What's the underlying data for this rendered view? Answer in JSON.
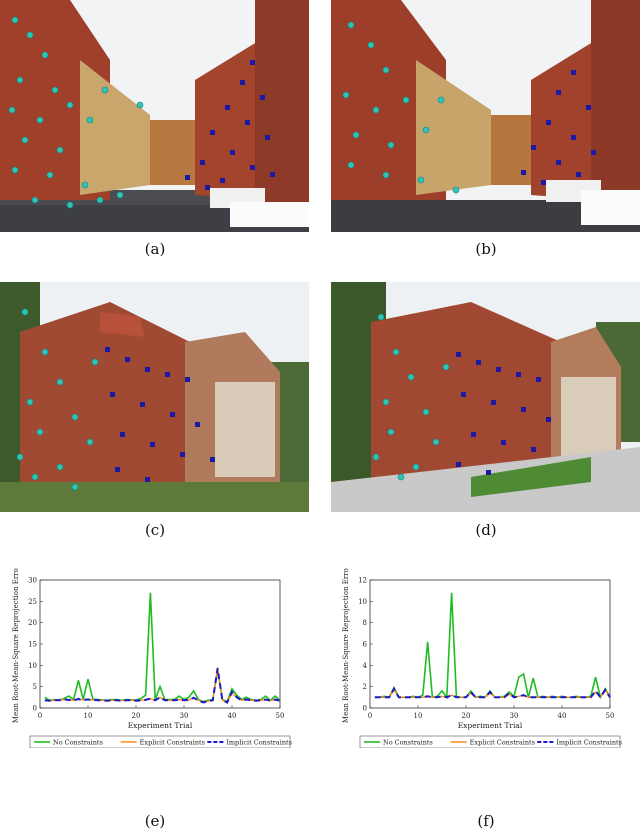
{
  "captions": [
    "(a)",
    "(b)",
    "(c)",
    "(d)",
    "(e)",
    "(f)"
  ],
  "photos": [
    {
      "subject": "courtyard-brick-buildings",
      "markers": [
        "cyan-circles",
        "blue-squares"
      ]
    },
    {
      "subject": "courtyard-brick-buildings",
      "markers": [
        "cyan-circles",
        "blue-squares"
      ]
    },
    {
      "subject": "brick-library-building",
      "markers": [
        "cyan-circles",
        "blue-squares"
      ]
    },
    {
      "subject": "brick-library-building",
      "markers": [
        "cyan-circles",
        "blue-squares"
      ]
    }
  ],
  "colors": {
    "no_constraints": "#22bb22",
    "explicit_constraints": "#ff8c1a",
    "implicit_constraints": "#1a1acc",
    "cyan_marker": "#2ec4b6",
    "blue_marker": "#1a1aa6"
  },
  "chart_data": [
    {
      "type": "line",
      "xlabel": "Experiment Trial",
      "ylabel": "Mean Root-Mean-Square Reprojection Error",
      "xlim": [
        0,
        50
      ],
      "ylim": [
        0,
        30
      ],
      "xticks": [
        0,
        10,
        20,
        30,
        40,
        50
      ],
      "yticks": [
        0,
        5,
        10,
        15,
        20,
        25,
        30
      ],
      "legend": "bottom",
      "x": [
        1,
        2,
        3,
        4,
        5,
        6,
        7,
        8,
        9,
        10,
        11,
        12,
        13,
        14,
        15,
        16,
        17,
        18,
        19,
        20,
        21,
        22,
        23,
        24,
        25,
        26,
        27,
        28,
        29,
        30,
        31,
        32,
        33,
        34,
        35,
        36,
        37,
        38,
        39,
        40,
        41,
        42,
        43,
        44,
        45,
        46,
        47,
        48,
        49,
        50
      ],
      "series": [
        {
          "name": "No Constraints",
          "values": [
            2.5,
            1.8,
            2.0,
            1.9,
            2.2,
            2.8,
            2.0,
            6.5,
            2.0,
            6.8,
            2.1,
            2.0,
            1.9,
            1.8,
            2.0,
            2.0,
            1.8,
            2.0,
            1.9,
            1.9,
            2.2,
            3.0,
            27.0,
            2.0,
            5.0,
            2.0,
            2.0,
            2.0,
            2.8,
            2.0,
            2.5,
            4.0,
            2.0,
            1.5,
            1.8,
            2.0,
            9.0,
            2.0,
            1.5,
            4.5,
            3.0,
            2.0,
            2.5,
            2.0,
            1.8,
            2.0,
            2.8,
            1.8,
            2.8,
            1.8
          ]
        },
        {
          "name": "Explicit Constraints",
          "values": [
            1.8,
            1.7,
            1.8,
            1.8,
            2.0,
            1.9,
            1.8,
            2.0,
            1.9,
            2.0,
            1.9,
            1.8,
            1.8,
            1.7,
            1.8,
            1.8,
            1.7,
            1.8,
            1.8,
            1.7,
            1.8,
            1.9,
            2.2,
            1.8,
            2.5,
            1.8,
            1.8,
            1.8,
            2.0,
            1.8,
            1.9,
            2.4,
            1.8,
            1.3,
            1.6,
            1.8,
            9.5,
            1.8,
            1.3,
            3.5,
            2.5,
            1.8,
            2.0,
            1.8,
            1.7,
            1.8,
            2.0,
            1.7,
            2.0,
            1.7
          ]
        },
        {
          "name": "Implicit Constraints",
          "values": [
            1.8,
            1.7,
            1.8,
            1.8,
            2.0,
            1.9,
            1.8,
            2.1,
            1.9,
            2.0,
            1.9,
            1.8,
            1.8,
            1.7,
            1.8,
            1.8,
            1.7,
            1.8,
            1.8,
            1.7,
            1.8,
            1.9,
            2.2,
            1.8,
            2.5,
            1.8,
            1.8,
            1.8,
            2.0,
            1.8,
            1.9,
            2.4,
            1.8,
            1.3,
            1.6,
            1.8,
            9.3,
            1.8,
            1.3,
            3.8,
            2.5,
            1.8,
            2.0,
            1.8,
            1.7,
            1.8,
            2.0,
            1.7,
            2.0,
            1.7
          ]
        }
      ]
    },
    {
      "type": "line",
      "xlabel": "Experiment Trial",
      "ylabel": "Mean Root-Mean-Square Reprojection Error",
      "xlim": [
        0,
        50
      ],
      "ylim": [
        0,
        12
      ],
      "xticks": [
        0,
        10,
        20,
        30,
        40,
        50
      ],
      "yticks": [
        0,
        2,
        4,
        6,
        8,
        10,
        12
      ],
      "legend": "bottom",
      "x": [
        1,
        2,
        3,
        4,
        5,
        6,
        7,
        8,
        9,
        10,
        11,
        12,
        13,
        14,
        15,
        16,
        17,
        18,
        19,
        20,
        21,
        22,
        23,
        24,
        25,
        26,
        27,
        28,
        29,
        30,
        31,
        32,
        33,
        34,
        35,
        36,
        37,
        38,
        39,
        40,
        41,
        42,
        43,
        44,
        45,
        46,
        47,
        48,
        49,
        50
      ],
      "series": [
        {
          "name": "No Constraints",
          "values": [
            1.0,
            1.0,
            1.1,
            1.0,
            1.9,
            1.0,
            1.0,
            1.0,
            1.1,
            1.0,
            1.2,
            6.2,
            1.0,
            1.1,
            1.6,
            1.0,
            10.8,
            1.1,
            1.0,
            1.0,
            1.6,
            1.0,
            1.1,
            1.0,
            1.6,
            1.0,
            1.0,
            1.1,
            1.5,
            1.1,
            2.9,
            3.2,
            1.0,
            2.8,
            1.0,
            1.1,
            1.0,
            1.1,
            1.0,
            1.1,
            1.0,
            1.0,
            1.1,
            1.0,
            1.0,
            1.1,
            2.9,
            1.0,
            1.8,
            1.0
          ]
        },
        {
          "name": "Explicit Constraints",
          "values": [
            1.0,
            1.0,
            1.0,
            1.0,
            1.7,
            1.0,
            1.0,
            1.0,
            1.0,
            1.0,
            1.0,
            1.1,
            1.0,
            1.0,
            1.1,
            1.0,
            1.2,
            1.0,
            1.0,
            1.0,
            1.4,
            1.0,
            1.0,
            1.0,
            1.4,
            1.0,
            1.0,
            1.0,
            1.3,
            1.0,
            1.1,
            1.2,
            1.0,
            1.0,
            1.0,
            1.0,
            1.0,
            1.0,
            1.0,
            1.0,
            1.0,
            1.0,
            1.0,
            1.0,
            1.0,
            1.0,
            1.5,
            1.0,
            1.7,
            1.0
          ]
        },
        {
          "name": "Implicit Constraints",
          "values": [
            1.0,
            1.0,
            1.0,
            1.0,
            1.8,
            1.0,
            1.0,
            1.0,
            1.0,
            1.0,
            1.0,
            1.1,
            1.0,
            1.0,
            1.1,
            1.0,
            1.2,
            1.0,
            1.0,
            1.0,
            1.5,
            1.0,
            1.0,
            1.0,
            1.5,
            1.0,
            1.0,
            1.0,
            1.4,
            1.0,
            1.1,
            1.2,
            1.0,
            1.0,
            1.0,
            1.0,
            1.0,
            1.0,
            1.0,
            1.0,
            1.0,
            1.0,
            1.0,
            1.0,
            1.0,
            1.0,
            1.6,
            1.0,
            1.7,
            1.0
          ]
        }
      ]
    }
  ]
}
